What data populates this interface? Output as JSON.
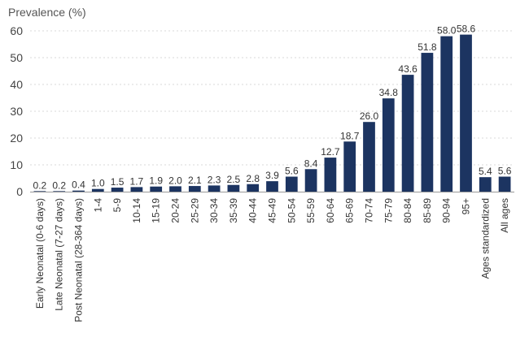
{
  "chart_data": {
    "type": "bar",
    "ylabel": "Prevalence (%)",
    "xlabel": "",
    "ylim": [
      0,
      60
    ],
    "yticks": [
      0,
      10,
      20,
      30,
      40,
      50,
      60
    ],
    "grid": true,
    "bar_color": "#1c3461",
    "categories": [
      "Early Neonatal (0-6 days)",
      "Late Neonatal (7-27 days)",
      "Post Neonatal (28-364 days)",
      "1-4",
      "5-9",
      "10-14",
      "15-19",
      "20-24",
      "25-29",
      "30-34",
      "35-39",
      "40-44",
      "45-49",
      "50-54",
      "55-59",
      "60-64",
      "65-69",
      "70-74",
      "75-79",
      "80-84",
      "85-89",
      "90-94",
      "95+",
      "Ages standardized",
      "All ages"
    ],
    "values": [
      0.2,
      0.2,
      0.4,
      1.0,
      1.5,
      1.7,
      1.9,
      2.0,
      2.1,
      2.3,
      2.5,
      2.8,
      3.9,
      5.6,
      8.4,
      12.7,
      18.7,
      26.0,
      34.8,
      43.6,
      51.8,
      58.0,
      58.6,
      5.4,
      5.6
    ],
    "labels": [
      "0.2",
      "0.2",
      "0.4",
      "1.0",
      "1.5",
      "1.7",
      "1.9",
      "2.0",
      "2.1",
      "2.3",
      "2.5",
      "2.8",
      "3.9",
      "5.6",
      "8.4",
      "12.7",
      "18.7",
      "26.0",
      "34.8",
      "43.6",
      "51.8",
      "58.0",
      "58.6",
      "5.4",
      "5.6"
    ]
  }
}
